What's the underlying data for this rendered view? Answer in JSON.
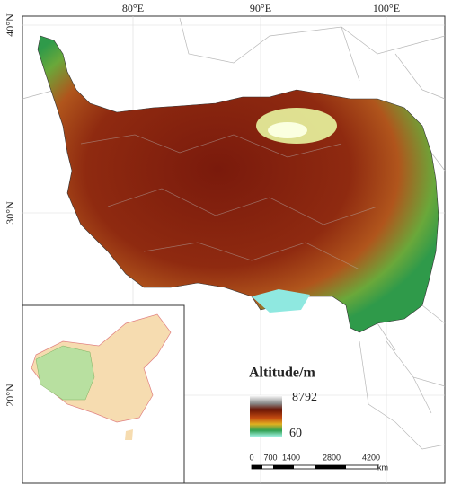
{
  "graticule": {
    "top_labels": [
      "80°E",
      "90°E",
      "100°E"
    ],
    "left_labels": [
      "40°N",
      "30°N",
      "20°N"
    ]
  },
  "legend": {
    "title": "Altitude/m",
    "max_label": "8792",
    "min_label": "60"
  },
  "scale_bar": {
    "labels": [
      "0",
      "700",
      "1400",
      "2800",
      "4200"
    ],
    "unit": "km"
  }
}
